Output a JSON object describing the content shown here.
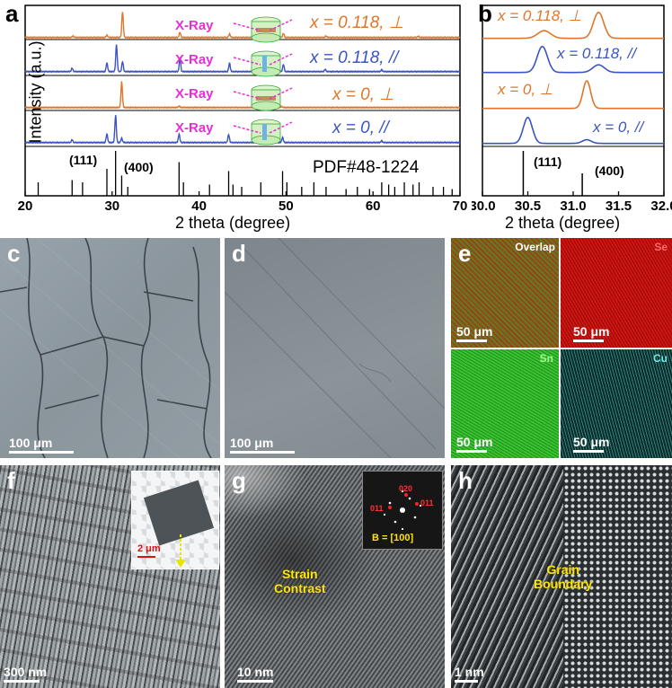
{
  "panel_labels": {
    "a": "a",
    "b": "b",
    "c": "c",
    "d": "d",
    "e": "e",
    "f": "f",
    "g": "g",
    "h": "h"
  },
  "chart_data": [
    {
      "type": "line",
      "panel": "a",
      "xlabel": "2 theta (degree)",
      "ylabel": "Intensity (a.u.)",
      "xlim": [
        20,
        70
      ],
      "x_ticks": [
        "20",
        "30",
        "40",
        "50",
        "60",
        "70"
      ],
      "series": [
        {
          "name": "x = 0.118, ⊥",
          "color": "#e0762a",
          "peaks": [
            [
              25.5,
              0.05
            ],
            [
              29.4,
              0.08
            ],
            [
              31.2,
              0.9
            ],
            [
              37.8,
              0.18
            ],
            [
              43.5,
              0.12
            ],
            [
              49.7,
              0.14
            ],
            [
              54.6,
              0.05
            ],
            [
              65.2,
              0.04
            ]
          ]
        },
        {
          "name": "x = 0.118, //",
          "color": "#3a55c0",
          "peaks": [
            [
              25.4,
              0.12
            ],
            [
              29.4,
              0.3
            ],
            [
              30.5,
              0.95
            ],
            [
              31.2,
              0.35
            ],
            [
              37.8,
              0.45
            ],
            [
              43.5,
              0.3
            ],
            [
              49.7,
              0.25
            ],
            [
              54.5,
              0.08
            ],
            [
              61.0,
              0.06
            ]
          ]
        },
        {
          "name": "x = 0, ⊥",
          "color": "#e0762a",
          "peaks": [
            [
              31.1,
              0.9
            ],
            [
              37.7,
              0.05
            ],
            [
              49.5,
              0.04
            ]
          ]
        },
        {
          "name": "x = 0, //",
          "color": "#3a55c0",
          "peaks": [
            [
              25.4,
              0.1
            ],
            [
              29.4,
              0.3
            ],
            [
              30.4,
              0.95
            ],
            [
              31.1,
              0.15
            ],
            [
              37.7,
              0.3
            ],
            [
              43.4,
              0.28
            ],
            [
              47.0,
              0.05
            ],
            [
              49.6,
              0.18
            ],
            [
              61.0,
              0.06
            ]
          ]
        }
      ],
      "reference": {
        "label": "PDF#48-1224",
        "peak_labels": [
          "(111)",
          "(400)"
        ],
        "lines": [
          [
            21.5,
            0.3
          ],
          [
            25.4,
            0.35
          ],
          [
            26.6,
            0.3
          ],
          [
            29.4,
            0.6
          ],
          [
            30.4,
            1.0
          ],
          [
            31.1,
            0.45
          ],
          [
            31.8,
            0.2
          ],
          [
            37.7,
            0.75
          ],
          [
            38.2,
            0.3
          ],
          [
            41.2,
            0.25
          ],
          [
            43.4,
            0.55
          ],
          [
            43.9,
            0.25
          ],
          [
            44.9,
            0.2
          ],
          [
            47.1,
            0.3
          ],
          [
            49.6,
            0.55
          ],
          [
            50.1,
            0.3
          ],
          [
            51.8,
            0.2
          ],
          [
            53.2,
            0.3
          ],
          [
            54.6,
            0.2
          ],
          [
            56.9,
            0.15
          ],
          [
            58.2,
            0.2
          ],
          [
            59.6,
            0.15
          ],
          [
            61.0,
            0.3
          ],
          [
            61.8,
            0.25
          ],
          [
            62.5,
            0.2
          ],
          [
            63.6,
            0.3
          ],
          [
            64.6,
            0.25
          ],
          [
            65.3,
            0.3
          ],
          [
            66.9,
            0.2
          ],
          [
            68.1,
            0.2
          ],
          [
            69.1,
            0.15
          ]
        ]
      },
      "xray_label": "X-Ray"
    },
    {
      "type": "line",
      "panel": "b",
      "xlabel": "2 theta (degree)",
      "xlim": [
        30.0,
        32.0
      ],
      "x_ticks": [
        "30.0",
        "30.5",
        "31.0",
        "31.5",
        "32.0"
      ],
      "series": [
        {
          "name": "x = 0.118, ⊥",
          "color": "#e0762a",
          "peaks": [
            [
              30.68,
              0.25,
              0.1
            ],
            [
              31.28,
              0.85,
              0.08
            ]
          ]
        },
        {
          "name": "x = 0.118, //",
          "color": "#3a55c0",
          "peaks": [
            [
              30.66,
              0.85,
              0.08
            ],
            [
              31.28,
              0.25,
              0.09
            ]
          ]
        },
        {
          "name": "x = 0, ⊥",
          "color": "#e0762a",
          "peaks": [
            [
              31.15,
              0.9,
              0.06
            ]
          ]
        },
        {
          "name": "x = 0, //",
          "color": "#3a55c0",
          "peaks": [
            [
              30.5,
              0.85,
              0.07
            ],
            [
              31.15,
              0.12,
              0.07
            ]
          ]
        }
      ],
      "reference": {
        "peak_labels": [
          "(111)",
          "(400)"
        ],
        "lines": [
          [
            30.45,
            1.0
          ],
          [
            31.1,
            0.5
          ]
        ]
      }
    }
  ],
  "micrographs": {
    "c": {
      "scale": "100 μm"
    },
    "d": {
      "scale": "100 μm"
    },
    "e": {
      "maps": [
        {
          "label": "Overlap",
          "scale": "50 μm",
          "color": "#8a5a1e"
        },
        {
          "label": "Se",
          "scale": "50 μm",
          "color": "#d01010"
        },
        {
          "label": "Sn",
          "scale": "50 μm",
          "color": "#35c430"
        },
        {
          "label": "Cu",
          "scale": "50 μm",
          "color": "#5fe0d6"
        }
      ]
    },
    "f": {
      "scale": "300 nm",
      "inset_scale": "2 μm"
    },
    "g": {
      "scale": "10 nm",
      "annotation": "Strain\nContrast",
      "fft_label": "B = [100]",
      "fft_spots": [
        "020",
        "011",
        "011"
      ]
    },
    "h": {
      "scale": "1 nm",
      "annotation": "Grain\nBoundary"
    }
  }
}
